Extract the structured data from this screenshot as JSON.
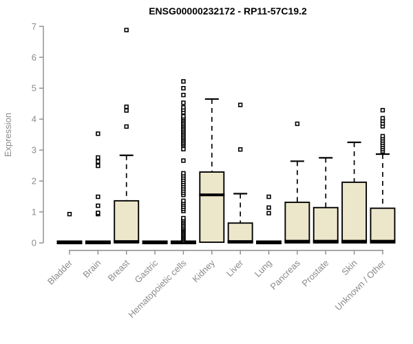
{
  "page": {
    "background": "#ffffff"
  },
  "chart_data": {
    "type": "boxplot",
    "title": "ENSG00000232172 - RP11-57C19.2",
    "ylabel": "Expression",
    "xlabel": "",
    "ylim": [
      0,
      7
    ],
    "yticks": [
      0,
      1,
      2,
      3,
      4,
      5,
      6,
      7
    ],
    "grid": false,
    "legend": null,
    "colors": {
      "box_fill": "#ECE7CB",
      "box_border": "#000000",
      "whisker": "#000000",
      "outlier": "#000000",
      "axis": "#8a8a8a",
      "title": "#000000",
      "background": "#ffffff"
    },
    "categories": [
      "Bladder",
      "Brain",
      "Breast",
      "Gastric",
      "Hematopoietic cells",
      "Kidney",
      "Liver",
      "Lung",
      "Pancreas",
      "Prostate",
      "Skin",
      "Unknown / Other"
    ],
    "series": [
      {
        "category": "Bladder",
        "q1": 0,
        "median": 0,
        "q3": 0,
        "whisker_low": 0,
        "whisker_high": 0,
        "outliers": [
          0.93
        ]
      },
      {
        "category": "Brain",
        "q1": 0,
        "median": 0,
        "q3": 0,
        "whisker_low": 0,
        "whisker_high": 0,
        "outliers": [
          0.93,
          0.97,
          1.2,
          1.49,
          2.49,
          2.63,
          2.76,
          3.53
        ]
      },
      {
        "category": "Breast",
        "q1": 0,
        "median": 0.02,
        "q3": 1.36,
        "whisker_low": 0,
        "whisker_high": 2.83,
        "outliers": [
          3.76,
          4.28,
          4.4,
          6.88
        ]
      },
      {
        "category": "Gastric",
        "q1": 0,
        "median": 0,
        "q3": 0,
        "whisker_low": 0,
        "whisker_high": 0,
        "outliers": []
      },
      {
        "category": "Hematopoietic cells",
        "q1": 0,
        "median": 0,
        "q3": 0,
        "whisker_low": 0,
        "whisker_high": 0,
        "outliers": [
          0.06,
          0.1,
          0.14,
          0.18,
          0.22,
          0.26,
          0.3,
          0.34,
          0.38,
          0.42,
          0.46,
          0.5,
          0.55,
          0.6,
          0.65,
          0.7,
          0.75,
          0.8,
          1.03,
          1.1,
          1.17,
          1.24,
          1.3,
          1.36,
          1.55,
          1.62,
          1.69,
          1.76,
          1.83,
          1.9,
          1.97,
          2.04,
          2.11,
          2.18,
          2.25,
          2.66,
          3.03,
          3.14,
          3.19,
          3.24,
          3.29,
          3.34,
          3.39,
          3.44,
          3.49,
          3.54,
          3.59,
          3.64,
          3.69,
          3.74,
          3.79,
          3.84,
          3.89,
          3.94,
          3.99,
          4.04,
          4.09,
          4.22,
          4.3,
          4.38,
          4.53,
          4.78,
          5.0,
          5.22
        ]
      },
      {
        "category": "Kidney",
        "q1": 0.02,
        "median": 1.53,
        "q3": 2.29,
        "whisker_low": 0.02,
        "whisker_high": 4.65,
        "outliers": []
      },
      {
        "category": "Liver",
        "q1": 0,
        "median": 0.02,
        "q3": 0.64,
        "whisker_low": 0,
        "whisker_high": 1.59,
        "outliers": [
          3.02,
          4.46
        ]
      },
      {
        "category": "Lung",
        "q1": 0,
        "median": 0,
        "q3": 0,
        "whisker_low": 0,
        "whisker_high": 0,
        "outliers": [
          0.96,
          1.14,
          1.49
        ]
      },
      {
        "category": "Pancreas",
        "q1": 0,
        "median": 0.03,
        "q3": 1.31,
        "whisker_low": 0,
        "whisker_high": 2.64,
        "outliers": [
          3.85
        ]
      },
      {
        "category": "Prostate",
        "q1": 0,
        "median": 0.03,
        "q3": 1.14,
        "whisker_low": 0,
        "whisker_high": 2.75,
        "outliers": []
      },
      {
        "category": "Skin",
        "q1": 0,
        "median": 0.03,
        "q3": 1.96,
        "whisker_low": 0,
        "whisker_high": 3.25,
        "outliers": []
      },
      {
        "category": "Unknown / Other",
        "q1": 0,
        "median": 0.03,
        "q3": 1.12,
        "whisker_low": 0,
        "whisker_high": 2.87,
        "outliers": [
          2.96,
          3.03,
          3.1,
          3.17,
          3.24,
          3.31,
          3.38,
          3.45,
          3.77,
          3.86,
          3.95,
          4.03,
          4.29
        ]
      }
    ]
  }
}
